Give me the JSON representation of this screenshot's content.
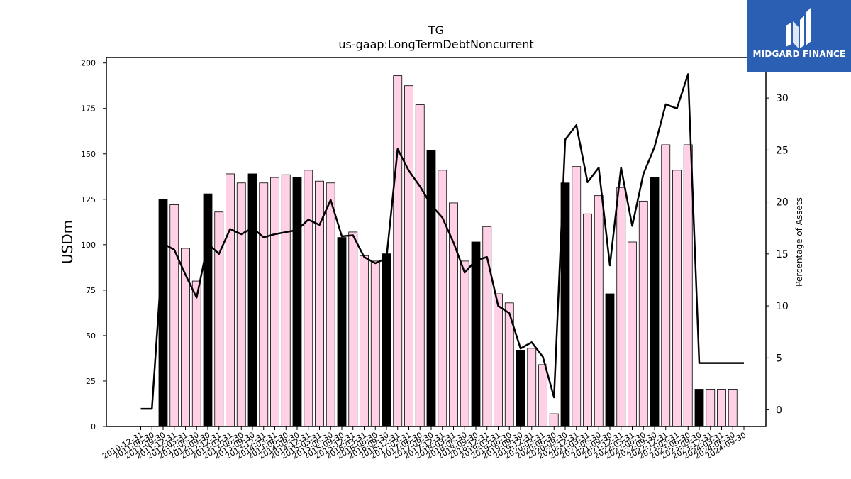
{
  "chart_data": {
    "type": "bar",
    "title": "TG",
    "subtitle": "us-gaap:LongTermDebtNoncurrent",
    "ylabel": "USDm",
    "y2label": "Percentage of Assets",
    "ylim": [
      0,
      203
    ],
    "y2lim": [
      -1.6,
      33.9
    ],
    "yticks": [
      0,
      25,
      50,
      75,
      100,
      125,
      150,
      175,
      200
    ],
    "y2ticks": [
      0,
      5,
      10,
      15,
      20,
      25,
      30
    ],
    "categories": [
      "2010-12-31",
      "2011-06-30",
      "2011-09-30",
      "2011-12-31",
      "2012-03-31",
      "2012-06-30",
      "2012-09-30",
      "2012-12-31",
      "2013-03-31",
      "2013-06-30",
      "2013-09-30",
      "2013-12-31",
      "2014-03-31",
      "2014-06-30",
      "2014-09-30",
      "2014-12-31",
      "2015-03-31",
      "2015-06-30",
      "2015-09-30",
      "2015-12-31",
      "2016-03-31",
      "2016-06-30",
      "2016-09-30",
      "2016-12-31",
      "2017-03-31",
      "2017-06-30",
      "2017-09-30",
      "2017-12-31",
      "2018-03-31",
      "2018-06-30",
      "2018-09-30",
      "2018-12-31",
      "2019-03-31",
      "2019-06-30",
      "2019-09-30",
      "2019-12-31",
      "2020-03-31",
      "2020-06-30",
      "2020-09-30",
      "2020-12-31",
      "2021-03-31",
      "2021-06-30",
      "2021-09-30",
      "2021-12-31",
      "2022-03-31",
      "2022-06-30",
      "2022-09-30",
      "2022-12-31",
      "2023-03-31",
      "2023-06-30",
      "2023-09-30",
      "2023-12-31",
      "2024-03-31",
      "2024-06-30",
      "2024-09-30"
    ],
    "values": [
      null,
      null,
      125,
      122,
      98,
      80,
      128,
      118,
      139,
      134,
      139,
      134,
      137,
      138.5,
      137,
      141,
      135,
      134,
      104,
      107,
      94,
      91,
      95,
      193,
      187.5,
      177,
      152,
      141,
      123,
      91,
      101.5,
      110,
      73,
      68,
      42,
      43,
      34,
      7,
      134,
      143,
      117,
      127,
      73,
      131.5,
      101.5,
      124,
      137,
      155,
      141,
      155,
      20.5,
      20.5,
      20.5,
      20.5,
      null
    ],
    "highlight": [
      false,
      false,
      true,
      false,
      false,
      false,
      true,
      false,
      false,
      false,
      true,
      false,
      false,
      false,
      true,
      false,
      false,
      false,
      true,
      false,
      false,
      false,
      true,
      false,
      false,
      false,
      true,
      false,
      false,
      false,
      true,
      false,
      false,
      false,
      true,
      false,
      false,
      false,
      true,
      false,
      false,
      false,
      true,
      false,
      false,
      false,
      true,
      false,
      false,
      false,
      true,
      false,
      false,
      false,
      false
    ],
    "pct_of_assets": [
      0.1,
      0.1,
      16,
      15.4,
      13,
      10.8,
      16,
      15,
      17.4,
      16.9,
      17.5,
      16.6,
      16.9,
      17.1,
      17.3,
      18.3,
      17.8,
      20.2,
      16.7,
      16.8,
      14.7,
      14.1,
      14.6,
      25.1,
      23,
      21.5,
      19.7,
      18.5,
      16.1,
      13.2,
      14.4,
      14.7,
      10,
      9.3,
      5.9,
      6.5,
      5.1,
      1.2,
      26,
      27.4,
      21.9,
      23.3,
      13.9,
      23.3,
      17.7,
      22.7,
      25.3,
      29.4,
      29,
      32.3,
      4.5,
      4.5,
      4.5,
      4.5,
      4.5
    ],
    "bar_color": "#ffd0e6",
    "highlight_color": "#000000",
    "line_color": "#000000",
    "grid": false,
    "legend": "none"
  },
  "brand": {
    "name": "MIDGARD FINANCE",
    "color": "#2b5fb3"
  }
}
